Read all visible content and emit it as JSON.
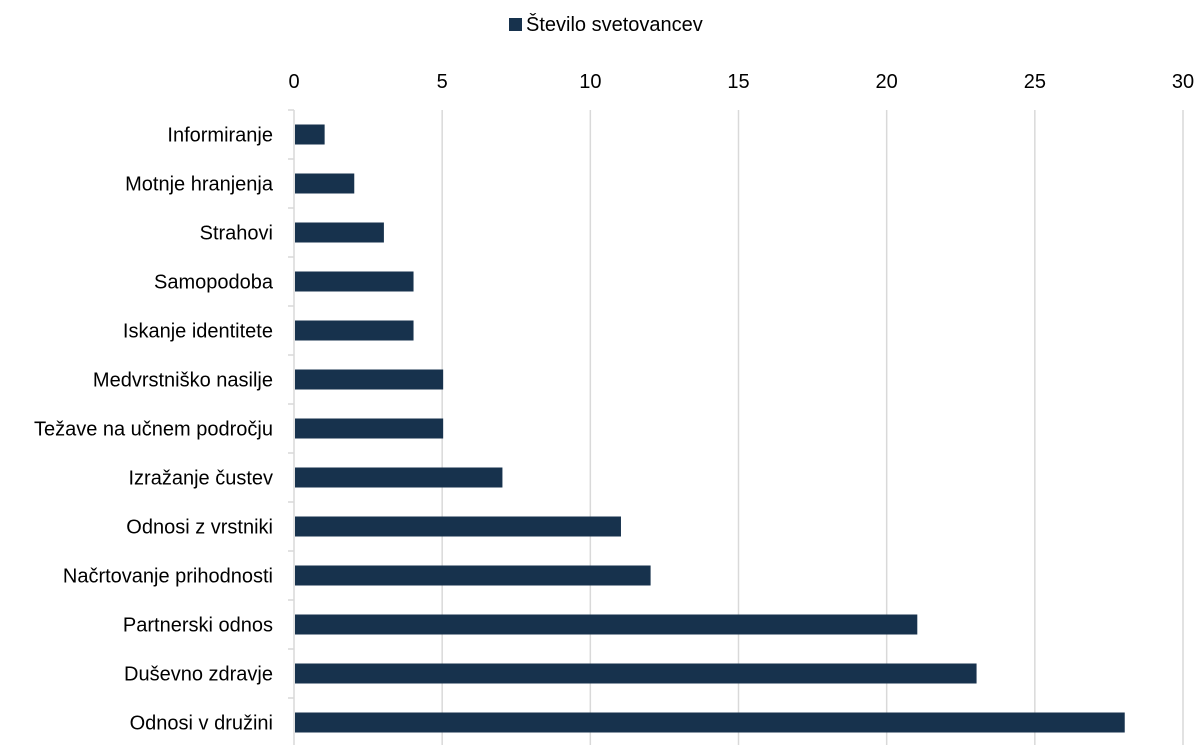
{
  "chart_data": {
    "type": "bar",
    "orientation": "horizontal",
    "categories": [
      "Informiranje",
      "Motnje hranjenja",
      "Strahovi",
      "Samopodoba",
      "Iskanje identitete",
      "Medvrstniško nasilje",
      "Težave na učnem področju",
      "Izražanje čustev",
      "Odnosi z vrstniki",
      "Načrtovanje prihodnosti",
      "Partnerski odnos",
      "Duševno zdravje",
      "Odnosi v družini"
    ],
    "series": [
      {
        "name": "Število svetovancev",
        "color": "#17324d",
        "values": [
          1,
          2,
          3,
          4,
          4,
          5,
          5,
          7,
          11,
          12,
          21,
          23,
          28
        ]
      }
    ],
    "x_ticks": [
      "0",
      "5",
      "10",
      "15",
      "20",
      "25",
      "30"
    ],
    "xlim": [
      0,
      30
    ],
    "x_axis_position": "top",
    "grid": true,
    "legend_position": "top-center"
  }
}
